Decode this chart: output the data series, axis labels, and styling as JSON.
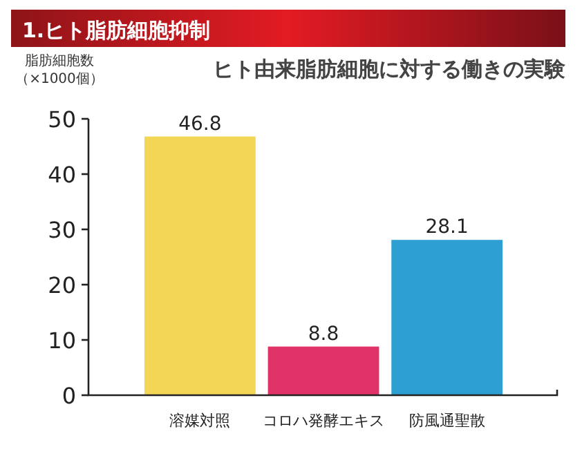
{
  "chart_data": {
    "type": "bar",
    "title": "1.ヒト脂肪細胞抑制",
    "subtitle": "ヒト由来脂肪細胞に対する働きの実験",
    "ylabel": "脂肪細胞数（×1000個）",
    "categories": [
      "溶媒対照",
      "コロハ発酵エキス",
      "防風通聖散"
    ],
    "values": [
      46.8,
      8.8,
      28.1
    ],
    "colors": [
      "#f3d655",
      "#e03469",
      "#2e9fd2"
    ],
    "ylim": [
      0,
      50
    ],
    "yticks": [
      0,
      10,
      20,
      30,
      40,
      50
    ],
    "data_labels": true
  }
}
